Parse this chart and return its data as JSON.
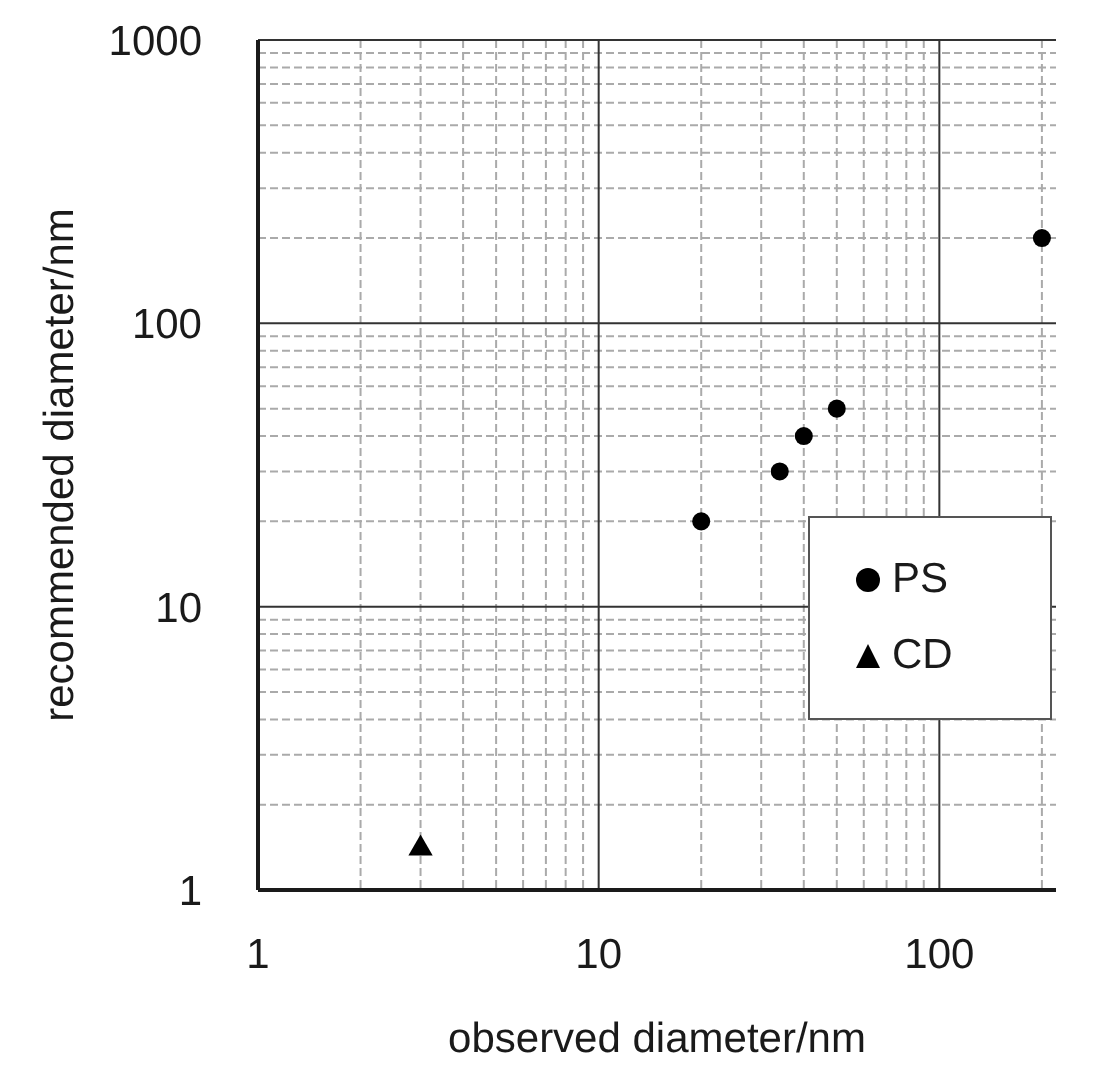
{
  "chart_data": {
    "type": "scatter",
    "xlabel": "observed diameter/nm",
    "ylabel": "recommended diameter/nm",
    "log": "xy",
    "xlim": [
      1,
      220
    ],
    "ylim": [
      1,
      1000
    ],
    "xticks": [
      1,
      10,
      100
    ],
    "yticks": [
      1,
      10,
      100,
      1000
    ],
    "grid": true,
    "legend": "right",
    "series": [
      {
        "name": "PS",
        "color": "#000000",
        "marker": "circle",
        "x": [
          20,
          34,
          40,
          50,
          200
        ],
        "values": [
          20,
          30,
          40,
          50,
          200
        ]
      },
      {
        "name": "CD",
        "color": "#000000",
        "marker": "triangle",
        "x": [
          3
        ],
        "values": [
          1.4
        ]
      }
    ]
  }
}
